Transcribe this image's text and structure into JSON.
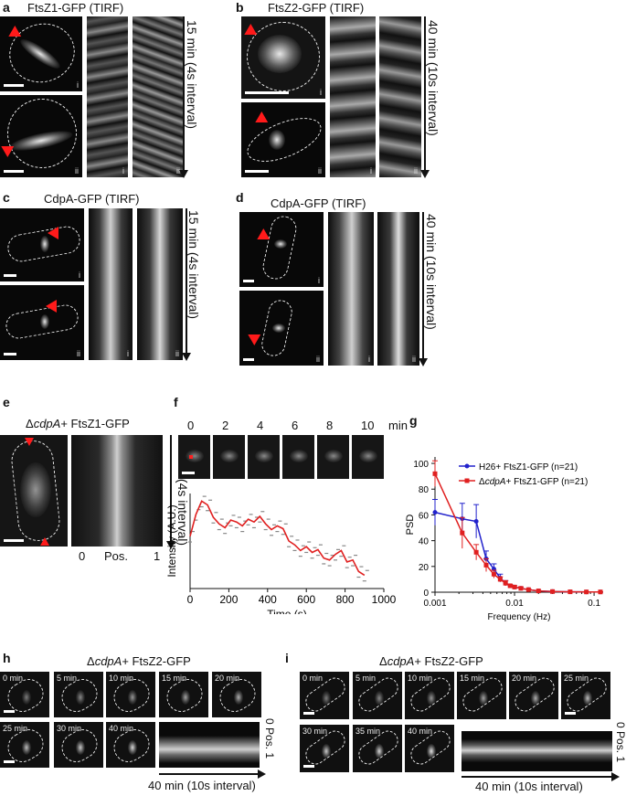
{
  "panels": {
    "a": {
      "letter": "a",
      "title": "FtsZ1-GFP (TIRF)",
      "duration": "15 min (4s interval)",
      "sub_i": "i",
      "sub_ii": "ii"
    },
    "b": {
      "letter": "b",
      "title": "FtsZ2-GFP (TIRF)",
      "duration": "40 min (10s interval)",
      "sub_i": "i",
      "sub_ii": "ii"
    },
    "c": {
      "letter": "c",
      "title": "CdpA-GFP (TIRF)",
      "duration": "15 min (4s interval)",
      "sub_i": "i",
      "sub_ii": "ii"
    },
    "d": {
      "letter": "d",
      "title": "CdpA-GFP (TIRF)",
      "duration": "40 min (10s interval)",
      "sub_i": "i",
      "sub_ii": "ii"
    },
    "e": {
      "letter": "e",
      "title_prefix": "Δ",
      "title_italic": "cdpA",
      "title_suffix": "+ FtsZ1-GFP",
      "duration": "15 min (4s interval)",
      "pos_start": "0",
      "pos_label": "Pos.",
      "pos_end": "1"
    },
    "f": {
      "letter": "f",
      "timepoints": [
        "0",
        "2",
        "4",
        "6",
        "8",
        "10"
      ],
      "time_unit": "min"
    },
    "g": {
      "letter": "g"
    },
    "h": {
      "letter": "h",
      "title_prefix": "Δ",
      "title_italic": "cdpA",
      "title_suffix": "+ FtsZ2-GFP",
      "frames": [
        "0 min",
        "5 min",
        "10 min",
        "15 min",
        "20 min",
        "25 min",
        "30 min",
        "40 min"
      ],
      "pos_start": "0",
      "pos_label": "Pos.",
      "pos_end": "1",
      "duration": "40 min (10s interval)"
    },
    "i": {
      "letter": "i",
      "title_prefix": "Δ",
      "title_italic": "cdpA",
      "title_suffix": "+ FtsZ2-GFP",
      "frames": [
        "0 min",
        "5 min",
        "10 min",
        "15 min",
        "20 min",
        "25 min",
        "30 min",
        "35 min",
        "40 min"
      ],
      "pos_start": "0",
      "pos_label": "Pos.",
      "pos_end": "1",
      "duration": "40 min (10s interval)"
    }
  },
  "chart_data": [
    {
      "type": "line",
      "panel": "f",
      "xlabel": "Time (s)",
      "ylabel": "Intensity (A.U.)",
      "xlim": [
        0,
        1000
      ],
      "xticks": [
        "0",
        "200",
        "400",
        "600",
        "800",
        "1000"
      ],
      "series": [
        {
          "color": "#e02020",
          "x": [
            0,
            30,
            60,
            90,
            120,
            150,
            180,
            210,
            240,
            270,
            300,
            330,
            360,
            390,
            420,
            450,
            480,
            510,
            540,
            570,
            600,
            630,
            660,
            690,
            720,
            750,
            780,
            810,
            840,
            870,
            900
          ],
          "y": [
            0.55,
            0.78,
            0.92,
            0.88,
            0.75,
            0.68,
            0.64,
            0.72,
            0.7,
            0.66,
            0.73,
            0.7,
            0.76,
            0.68,
            0.62,
            0.66,
            0.63,
            0.5,
            0.46,
            0.4,
            0.44,
            0.38,
            0.41,
            0.32,
            0.3,
            0.36,
            0.4,
            0.28,
            0.3,
            0.18,
            0.14
          ]
        }
      ]
    },
    {
      "type": "line",
      "panel": "g",
      "xlabel": "Frequency (Hz)",
      "ylabel": "PSD",
      "xscale": "log",
      "xlim": [
        0.001,
        0.13
      ],
      "ylim": [
        0,
        105
      ],
      "xticks": [
        "0.001",
        "0.01",
        "0.1"
      ],
      "yticks": [
        "0",
        "20",
        "40",
        "60",
        "80",
        "100"
      ],
      "legend_position": "top-right",
      "series": [
        {
          "name": "H26+ FtsZ1-GFP  (n=21)",
          "color": "#2222cc",
          "x": [
            0.001,
            0.0022,
            0.0033,
            0.0044,
            0.0055,
            0.0066,
            0.0077,
            0.0088,
            0.01,
            0.012,
            0.015,
            0.02,
            0.03,
            0.05,
            0.08,
            0.12
          ],
          "y": [
            62,
            57,
            55,
            26,
            18,
            11,
            7,
            5,
            4,
            3,
            2,
            1,
            0.5,
            0.3,
            0.2,
            0.2
          ],
          "err": [
            10,
            12,
            13,
            6,
            4,
            3,
            2,
            1,
            1,
            1,
            0.5,
            0.3,
            0.2,
            0.1,
            0.1,
            0.1
          ]
        },
        {
          "name_prefix": "Δ",
          "name_italic": "cdpA",
          "name_suffix": "+ FtsZ1-GFP (n=21)",
          "color": "#e02020",
          "x": [
            0.001,
            0.0022,
            0.0033,
            0.0044,
            0.0055,
            0.0066,
            0.0077,
            0.0088,
            0.01,
            0.012,
            0.015,
            0.02,
            0.03,
            0.05,
            0.08,
            0.12
          ],
          "y": [
            92,
            46,
            31,
            21,
            14,
            10,
            7,
            5,
            4,
            3,
            2,
            1,
            0.5,
            0.3,
            0.2,
            0.2
          ],
          "err": [
            10,
            12,
            6,
            5,
            3,
            2,
            2,
            1,
            1,
            1,
            0.5,
            0.3,
            0.2,
            0.1,
            0.1,
            0.1
          ]
        }
      ]
    }
  ]
}
